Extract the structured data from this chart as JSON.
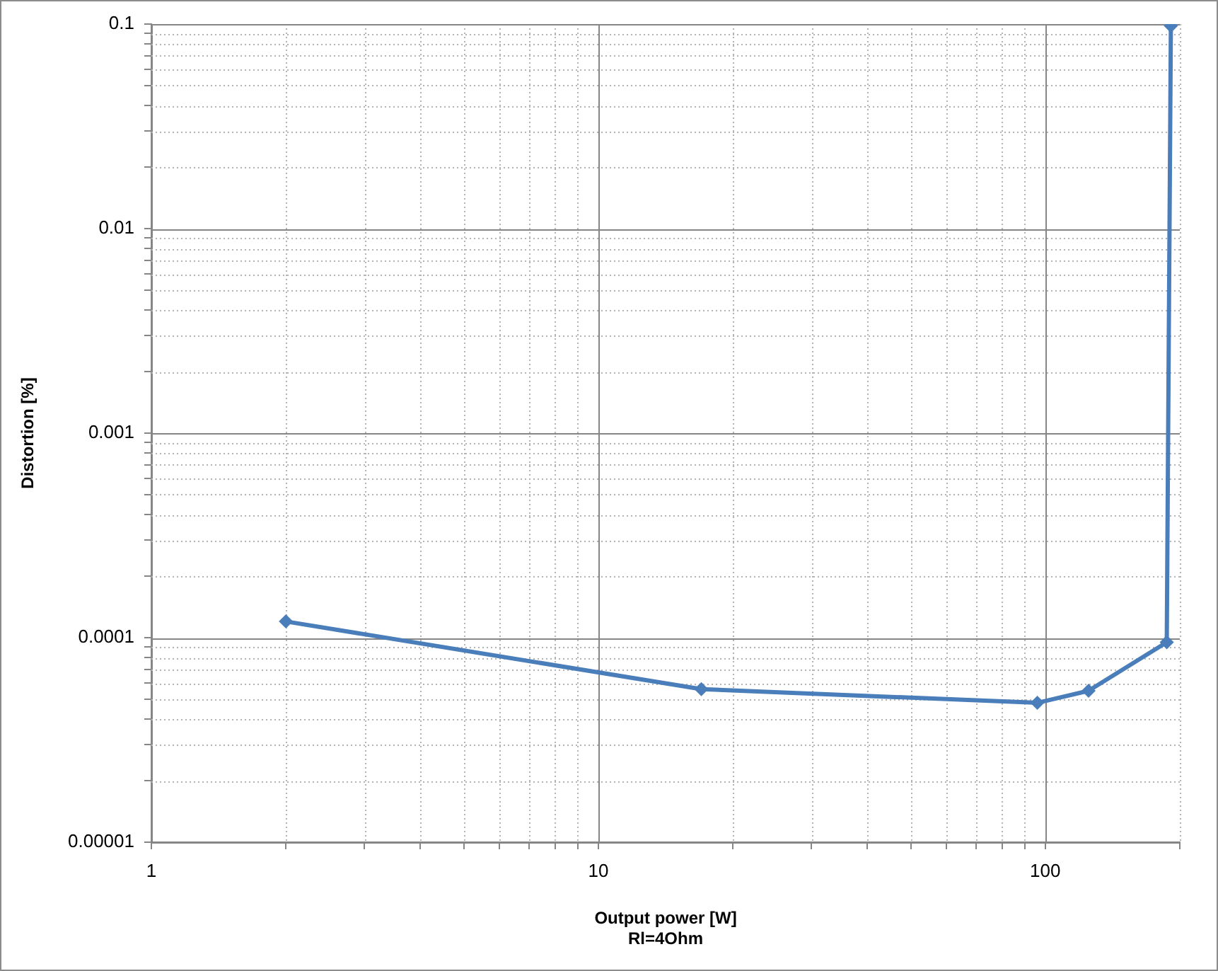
{
  "chart_data": {
    "type": "line",
    "xlabel": "Output power [W]\nRl=4Ohm",
    "ylabel": "Distortion [%]",
    "x": [
      2,
      17,
      96,
      125,
      187,
      191
    ],
    "series": [
      {
        "color": "#4a7ebb",
        "values": [
          0.00012,
          5.6e-05,
          4.8e-05,
          5.5e-05,
          9.5e-05,
          0.098
        ]
      }
    ],
    "xlim": [
      1,
      200
    ],
    "ylim": [
      1e-05,
      0.1
    ],
    "xticks": [
      1,
      {
        "value": 2,
        "label": null
      },
      {
        "value": 3,
        "label": null
      },
      {
        "value": 4,
        "label": null
      },
      {
        "value": 5,
        "label": null
      },
      {
        "value": 6,
        "label": null
      },
      {
        "value": 7,
        "label": null
      },
      {
        "value": 8,
        "label": null
      },
      {
        "value": 9,
        "label": null
      },
      10,
      {
        "value": 20,
        "label": null
      },
      {
        "value": 30,
        "label": null
      },
      {
        "value": 40,
        "label": null
      },
      {
        "value": 50,
        "label": null
      },
      {
        "value": 60,
        "label": null
      },
      {
        "value": 70,
        "label": null
      },
      {
        "value": 80,
        "label": null
      },
      {
        "value": 90,
        "label": null
      },
      100,
      {
        "value": 200,
        "label": null
      }
    ],
    "yticks": [
      {
        "value": 1e-05,
        "label": "0.00001"
      },
      {
        "value": 2e-05,
        "label": null
      },
      {
        "value": 3e-05,
        "label": null
      },
      {
        "value": 4e-05,
        "label": null
      },
      {
        "value": 5e-05,
        "label": null
      },
      {
        "value": 6e-05,
        "label": null
      },
      {
        "value": 7e-05,
        "label": null
      },
      {
        "value": 8e-05,
        "label": null
      },
      {
        "value": 9e-05,
        "label": null
      },
      0.0001,
      {
        "value": 0.0002,
        "label": null
      },
      {
        "value": 0.0003,
        "label": null
      },
      {
        "value": 0.0004,
        "label": null
      },
      {
        "value": 0.0005,
        "label": null
      },
      {
        "value": 0.0006,
        "label": null
      },
      {
        "value": 0.0007,
        "label": null
      },
      {
        "value": 0.0008,
        "label": null
      },
      {
        "value": 0.0009,
        "label": null
      },
      0.001,
      {
        "value": 0.002,
        "label": null
      },
      {
        "value": 0.003,
        "label": null
      },
      {
        "value": 0.004,
        "label": null
      },
      {
        "value": 0.005,
        "label": null
      },
      {
        "value": 0.006,
        "label": null
      },
      {
        "value": 0.007,
        "label": null
      },
      {
        "value": 0.008,
        "label": null
      },
      {
        "value": 0.009,
        "label": null
      },
      0.01,
      {
        "value": 0.02,
        "label": null
      },
      {
        "value": 0.03,
        "label": null
      },
      {
        "value": 0.04,
        "label": null
      },
      {
        "value": 0.05,
        "label": null
      },
      {
        "value": 0.06,
        "label": null
      },
      {
        "value": 0.07,
        "label": null
      },
      {
        "value": 0.08,
        "label": null
      },
      {
        "value": 0.09,
        "label": null
      },
      0.1
    ],
    "log": "xy",
    "grid": true,
    "legend": false,
    "marker": "diamond",
    "line_style": "solid"
  }
}
